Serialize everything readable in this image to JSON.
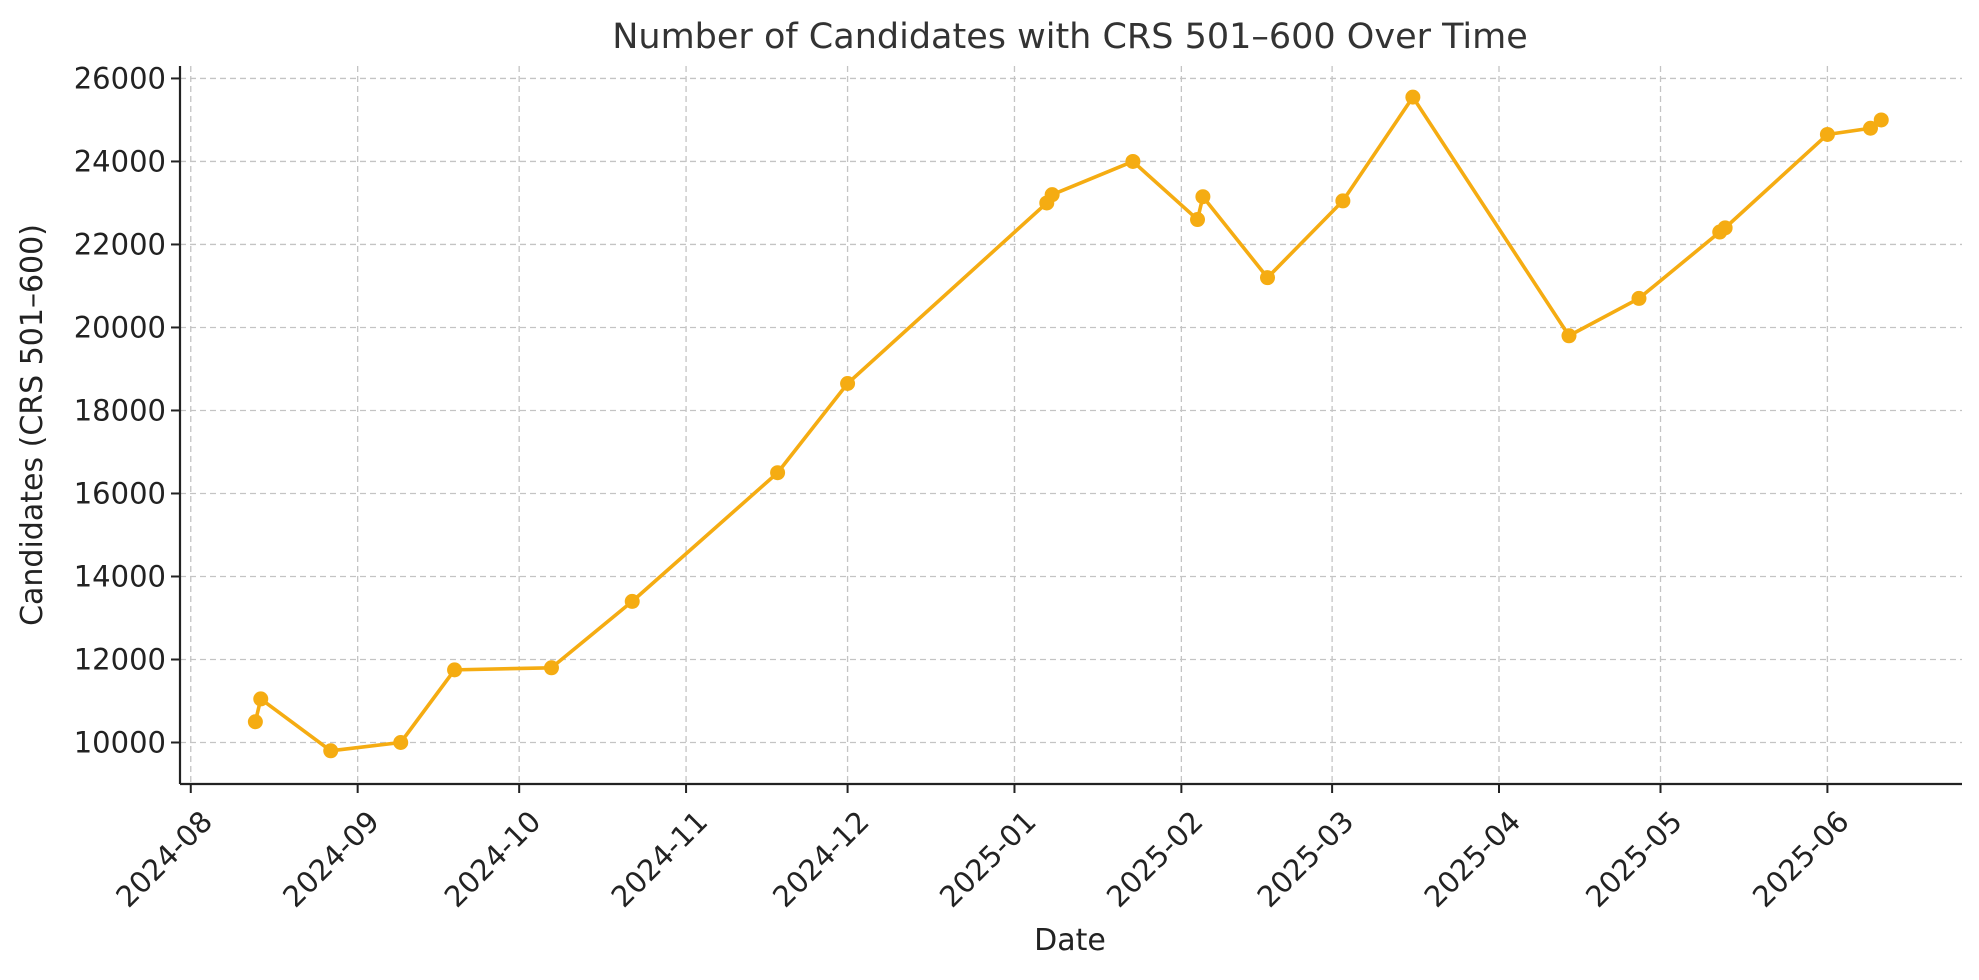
{
  "chart_data": {
    "type": "line",
    "title": "Number of Candidates with CRS 501–600 Over Time",
    "xlabel": "Date",
    "ylabel": "Candidates (CRS 501–600)",
    "xlim": [
      "2024-07-30",
      "2025-06-26"
    ],
    "ylim": [
      9000,
      26300
    ],
    "x_ticks": [
      "2024-08-01",
      "2024-09-01",
      "2024-10-01",
      "2024-11-01",
      "2024-12-01",
      "2025-01-01",
      "2025-02-01",
      "2025-03-01",
      "2025-04-01",
      "2025-05-01",
      "2025-06-01"
    ],
    "x_tick_labels": [
      "2024-08",
      "2024-09",
      "2024-10",
      "2024-11",
      "2024-12",
      "2025-01",
      "2025-02",
      "2025-03",
      "2025-04",
      "2025-05",
      "2025-06"
    ],
    "y_ticks": [
      10000,
      12000,
      14000,
      16000,
      18000,
      20000,
      22000,
      24000,
      26000
    ],
    "grid": true,
    "color": "#f5ac12",
    "series": [
      {
        "points": [
          {
            "x": "2024-08-13",
            "y": 10500
          },
          {
            "x": "2024-08-14",
            "y": 11050
          },
          {
            "x": "2024-08-27",
            "y": 9800
          },
          {
            "x": "2024-09-09",
            "y": 10000
          },
          {
            "x": "2024-09-19",
            "y": 11750
          },
          {
            "x": "2024-10-07",
            "y": 11800
          },
          {
            "x": "2024-10-22",
            "y": 13400
          },
          {
            "x": "2024-11-18",
            "y": 16500
          },
          {
            "x": "2024-12-01",
            "y": 18650
          },
          {
            "x": "2025-01-07",
            "y": 23000
          },
          {
            "x": "2025-01-08",
            "y": 23200
          },
          {
            "x": "2025-01-23",
            "y": 24000
          },
          {
            "x": "2025-02-04",
            "y": 22600
          },
          {
            "x": "2025-02-05",
            "y": 23150
          },
          {
            "x": "2025-02-17",
            "y": 21200
          },
          {
            "x": "2025-03-03",
            "y": 23050
          },
          {
            "x": "2025-03-16",
            "y": 25550
          },
          {
            "x": "2025-04-14",
            "y": 19800
          },
          {
            "x": "2025-04-27",
            "y": 20700
          },
          {
            "x": "2025-05-12",
            "y": 22300
          },
          {
            "x": "2025-05-13",
            "y": 22400
          },
          {
            "x": "2025-06-01",
            "y": 24650
          },
          {
            "x": "2025-06-09",
            "y": 24800
          },
          {
            "x": "2025-06-11",
            "y": 25000
          }
        ]
      }
    ]
  }
}
